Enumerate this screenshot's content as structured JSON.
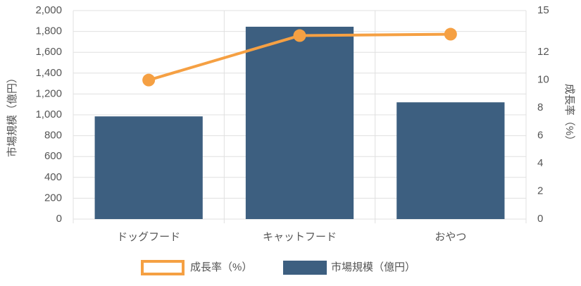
{
  "chart_data": {
    "type": "bar",
    "categories": [
      "ドッグフード",
      "キャットフード",
      "おやつ"
    ],
    "series": [
      {
        "name": "成長率（%）",
        "type": "line",
        "axis": "y2",
        "color": "#f5a043",
        "values": [
          10.0,
          13.2,
          13.3
        ]
      },
      {
        "name": "市場規模（億円）",
        "type": "bar",
        "color": "#3d5f80",
        "values": [
          985,
          1845,
          1120
        ]
      }
    ],
    "ylabel": "市場規模（億円）",
    "y2label": "成長率（%）",
    "ylim": [
      0,
      2000
    ],
    "yticks": [
      0,
      200,
      400,
      600,
      800,
      {
        "value": 1000,
        "label": "1,000"
      },
      {
        "value": 1200,
        "label": "1,200"
      },
      {
        "value": 1400,
        "label": "1,400"
      },
      {
        "value": 1600,
        "label": "1,600"
      },
      {
        "value": 1800,
        "label": "1,800"
      },
      {
        "value": 2000,
        "label": "2,000"
      }
    ],
    "y2lim": [
      0,
      15
    ],
    "y2ticks": [
      0,
      2,
      4,
      6,
      8,
      10,
      12,
      15
    ],
    "grid": true,
    "legend": "bottom"
  }
}
